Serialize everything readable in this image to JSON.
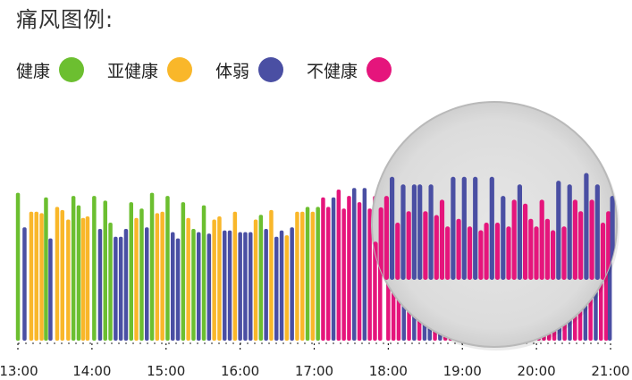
{
  "title": "痛风图例:",
  "legend": [
    {
      "label": "健康",
      "color": "#6cbf30"
    },
    {
      "label": "亚健康",
      "color": "#f9b72a"
    },
    {
      "label": "体弱",
      "color": "#4a4fa3"
    },
    {
      "label": "不健康",
      "color": "#e5157c"
    }
  ],
  "chart_data": {
    "type": "bar",
    "categories": [
      "13:00",
      "14:00",
      "15:00",
      "16:00",
      "17:00",
      "18:00",
      "19:00",
      "20:00",
      "21:00"
    ],
    "x_range": [
      13,
      21
    ],
    "ylim": [
      0,
      100
    ],
    "legend_position": "top-left",
    "grid": false,
    "magnifier": {
      "from_x": 18,
      "to_x": 21,
      "label": ""
    },
    "bars": [
      {
        "x": 13.0,
        "y": 94,
        "s": 0
      },
      {
        "x": 13.09,
        "y": 72,
        "s": 2
      },
      {
        "x": 13.18,
        "y": 82,
        "s": 1
      },
      {
        "x": 13.25,
        "y": 82,
        "s": 1
      },
      {
        "x": 13.32,
        "y": 81,
        "s": 1
      },
      {
        "x": 13.38,
        "y": 91,
        "s": 0
      },
      {
        "x": 13.44,
        "y": 65,
        "s": 2
      },
      {
        "x": 13.53,
        "y": 85,
        "s": 1
      },
      {
        "x": 13.6,
        "y": 83,
        "s": 1
      },
      {
        "x": 13.68,
        "y": 77,
        "s": 1
      },
      {
        "x": 13.75,
        "y": 92,
        "s": 0
      },
      {
        "x": 13.82,
        "y": 86,
        "s": 0
      },
      {
        "x": 13.88,
        "y": 78,
        "s": 1
      },
      {
        "x": 13.94,
        "y": 79,
        "s": 1
      },
      {
        "x": 14.03,
        "y": 92,
        "s": 0
      },
      {
        "x": 14.11,
        "y": 71,
        "s": 2
      },
      {
        "x": 14.18,
        "y": 89,
        "s": 0
      },
      {
        "x": 14.25,
        "y": 75,
        "s": 0
      },
      {
        "x": 14.32,
        "y": 66,
        "s": 2
      },
      {
        "x": 14.39,
        "y": 66,
        "s": 2
      },
      {
        "x": 14.46,
        "y": 71,
        "s": 2
      },
      {
        "x": 14.53,
        "y": 88,
        "s": 0
      },
      {
        "x": 14.6,
        "y": 78,
        "s": 1
      },
      {
        "x": 14.67,
        "y": 84,
        "s": 0
      },
      {
        "x": 14.74,
        "y": 72,
        "s": 2
      },
      {
        "x": 14.81,
        "y": 94,
        "s": 0
      },
      {
        "x": 14.88,
        "y": 81,
        "s": 1
      },
      {
        "x": 14.95,
        "y": 82,
        "s": 1
      },
      {
        "x": 15.02,
        "y": 92,
        "s": 0
      },
      {
        "x": 15.09,
        "y": 69,
        "s": 2
      },
      {
        "x": 15.16,
        "y": 65,
        "s": 2
      },
      {
        "x": 15.23,
        "y": 88,
        "s": 0
      },
      {
        "x": 15.3,
        "y": 78,
        "s": 1
      },
      {
        "x": 15.37,
        "y": 71,
        "s": 0
      },
      {
        "x": 15.44,
        "y": 69,
        "s": 2
      },
      {
        "x": 15.51,
        "y": 86,
        "s": 0
      },
      {
        "x": 15.58,
        "y": 68,
        "s": 2
      },
      {
        "x": 15.65,
        "y": 77,
        "s": 1
      },
      {
        "x": 15.72,
        "y": 79,
        "s": 1
      },
      {
        "x": 15.79,
        "y": 70,
        "s": 2
      },
      {
        "x": 15.86,
        "y": 70,
        "s": 2
      },
      {
        "x": 15.93,
        "y": 82,
        "s": 1
      },
      {
        "x": 16.0,
        "y": 69,
        "s": 2
      },
      {
        "x": 16.07,
        "y": 69,
        "s": 2
      },
      {
        "x": 16.14,
        "y": 69,
        "s": 2
      },
      {
        "x": 16.21,
        "y": 77,
        "s": 1
      },
      {
        "x": 16.28,
        "y": 80,
        "s": 0
      },
      {
        "x": 16.35,
        "y": 71,
        "s": 2
      },
      {
        "x": 16.42,
        "y": 83,
        "s": 1
      },
      {
        "x": 16.49,
        "y": 66,
        "s": 2
      },
      {
        "x": 16.56,
        "y": 70,
        "s": 2
      },
      {
        "x": 16.63,
        "y": 67,
        "s": 1
      },
      {
        "x": 16.7,
        "y": 72,
        "s": 2
      },
      {
        "x": 16.77,
        "y": 82,
        "s": 1
      },
      {
        "x": 16.84,
        "y": 82,
        "s": 1
      },
      {
        "x": 16.91,
        "y": 85,
        "s": 0
      },
      {
        "x": 16.98,
        "y": 82,
        "s": 1
      },
      {
        "x": 17.05,
        "y": 85,
        "s": 0
      },
      {
        "x": 17.12,
        "y": 91,
        "s": 3
      },
      {
        "x": 17.19,
        "y": 85,
        "s": 3
      },
      {
        "x": 17.26,
        "y": 91,
        "s": 2
      },
      {
        "x": 17.33,
        "y": 96,
        "s": 3
      },
      {
        "x": 17.4,
        "y": 84,
        "s": 3
      },
      {
        "x": 17.47,
        "y": 92,
        "s": 3
      },
      {
        "x": 17.54,
        "y": 97,
        "s": 2
      },
      {
        "x": 17.61,
        "y": 88,
        "s": 3
      },
      {
        "x": 17.68,
        "y": 97,
        "s": 2
      },
      {
        "x": 17.75,
        "y": 84,
        "s": 3
      },
      {
        "x": 17.82,
        "y": 92,
        "s": 3
      },
      {
        "x": 17.89,
        "y": 88,
        "s": 3
      },
      {
        "x": 18.0,
        "y": 85,
        "s": 3
      },
      {
        "x": 18.07,
        "y": 94,
        "s": 3
      },
      {
        "x": 18.14,
        "y": 97,
        "s": 3
      },
      {
        "x": 18.21,
        "y": 102,
        "s": 2
      },
      {
        "x": 18.28,
        "y": 90,
        "s": 3
      },
      {
        "x": 18.35,
        "y": 100,
        "s": 2
      },
      {
        "x": 18.42,
        "y": 93,
        "s": 3
      },
      {
        "x": 18.49,
        "y": 100,
        "s": 2
      },
      {
        "x": 18.56,
        "y": 100,
        "s": 2
      },
      {
        "x": 18.63,
        "y": 93,
        "s": 3
      },
      {
        "x": 18.7,
        "y": 100,
        "s": 2
      },
      {
        "x": 18.77,
        "y": 92,
        "s": 3
      },
      {
        "x": 18.84,
        "y": 96,
        "s": 3
      },
      {
        "x": 18.91,
        "y": 89,
        "s": 3
      },
      {
        "x": 18.98,
        "y": 102,
        "s": 2
      },
      {
        "x": 19.05,
        "y": 91,
        "s": 3
      },
      {
        "x": 19.12,
        "y": 102,
        "s": 2
      },
      {
        "x": 19.19,
        "y": 89,
        "s": 3
      },
      {
        "x": 19.26,
        "y": 102,
        "s": 2
      },
      {
        "x": 19.33,
        "y": 88,
        "s": 3
      },
      {
        "x": 19.4,
        "y": 90,
        "s": 3
      },
      {
        "x": 19.47,
        "y": 102,
        "s": 2
      },
      {
        "x": 19.54,
        "y": 90,
        "s": 3
      },
      {
        "x": 19.61,
        "y": 97,
        "s": 2
      },
      {
        "x": 19.68,
        "y": 89,
        "s": 3
      },
      {
        "x": 19.75,
        "y": 96,
        "s": 3
      },
      {
        "x": 19.82,
        "y": 100,
        "s": 2
      },
      {
        "x": 19.89,
        "y": 95,
        "s": 3
      },
      {
        "x": 19.96,
        "y": 91,
        "s": 3
      },
      {
        "x": 20.03,
        "y": 89,
        "s": 3
      },
      {
        "x": 20.1,
        "y": 96,
        "s": 3
      },
      {
        "x": 20.17,
        "y": 91,
        "s": 3
      },
      {
        "x": 20.24,
        "y": 88,
        "s": 3
      },
      {
        "x": 20.31,
        "y": 101,
        "s": 2
      },
      {
        "x": 20.38,
        "y": 89,
        "s": 3
      },
      {
        "x": 20.45,
        "y": 100,
        "s": 2
      },
      {
        "x": 20.52,
        "y": 96,
        "s": 3
      },
      {
        "x": 20.59,
        "y": 93,
        "s": 3
      },
      {
        "x": 20.66,
        "y": 103,
        "s": 2
      },
      {
        "x": 20.73,
        "y": 96,
        "s": 3
      },
      {
        "x": 20.8,
        "y": 100,
        "s": 2
      },
      {
        "x": 20.87,
        "y": 90,
        "s": 3
      },
      {
        "x": 20.94,
        "y": 93,
        "s": 3
      },
      {
        "x": 20.99,
        "y": 97,
        "s": 2
      }
    ]
  }
}
